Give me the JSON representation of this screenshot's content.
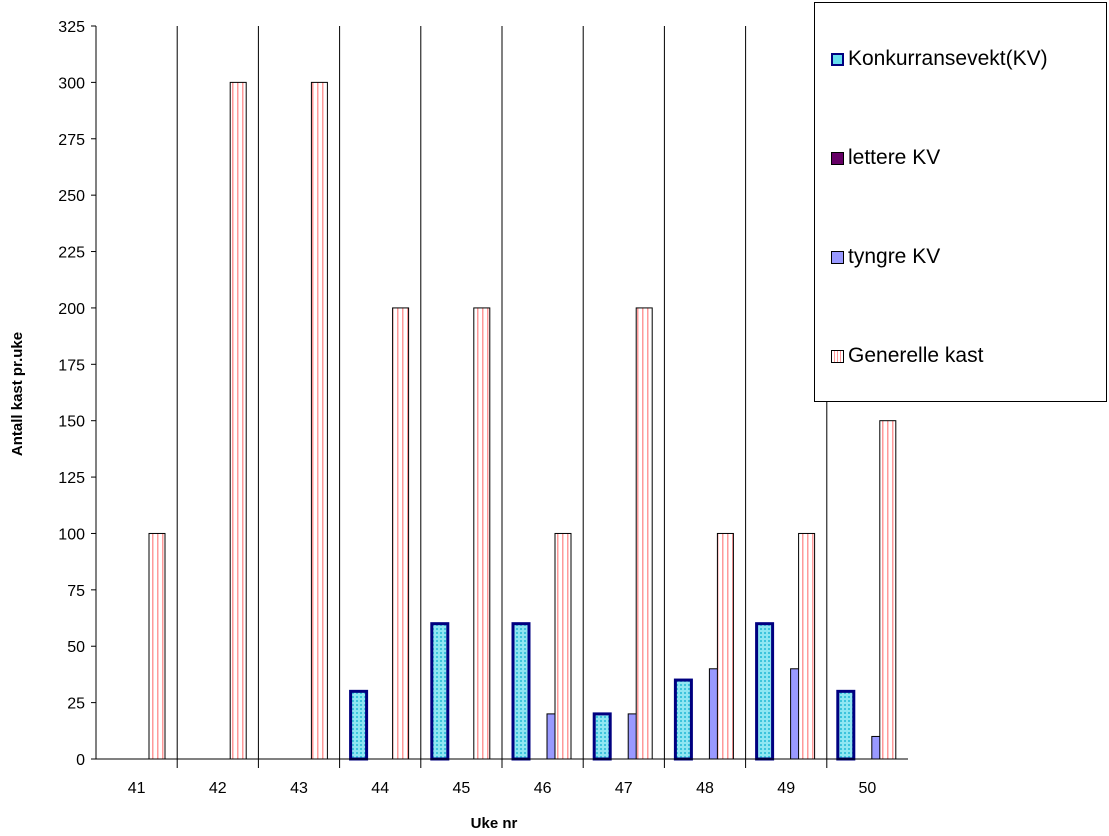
{
  "chart_data": {
    "type": "bar",
    "categories": [
      "41",
      "42",
      "43",
      "44",
      "45",
      "46",
      "47",
      "48",
      "49",
      "50"
    ],
    "series": [
      {
        "name": "Konkurransevekt(KV)",
        "values": [
          0,
          0,
          0,
          30,
          60,
          60,
          20,
          35,
          60,
          30
        ],
        "fill": "#66ddee",
        "stroke": "#000080",
        "pattern": "dotted"
      },
      {
        "name": "lettere KV",
        "values": [
          0,
          0,
          0,
          0,
          0,
          0,
          0,
          0,
          0,
          0
        ],
        "fill": "#660066",
        "stroke": "#000000",
        "pattern": "solid"
      },
      {
        "name": "tyngre KV",
        "values": [
          0,
          0,
          0,
          0,
          0,
          20,
          20,
          40,
          40,
          10
        ],
        "fill": "#9999ff",
        "stroke": "#000000",
        "pattern": "solid"
      },
      {
        "name": "Generelle kast",
        "values": [
          100,
          300,
          300,
          200,
          200,
          100,
          200,
          100,
          100,
          150
        ],
        "fill": "#ffffff",
        "stroke": "#000000",
        "pattern": "vertical-stripes",
        "stripe": "#ff9999"
      }
    ],
    "xlabel": "Uke nr",
    "ylabel": "Antall kast pr.uke",
    "ylim": [
      0,
      325
    ],
    "yticks": [
      "0",
      "25",
      "50",
      "75",
      "100",
      "125",
      "150",
      "175",
      "200",
      "225",
      "250",
      "275",
      "300",
      "325"
    ],
    "legend_position": "top-right",
    "grid": "vertical lines between categories"
  }
}
